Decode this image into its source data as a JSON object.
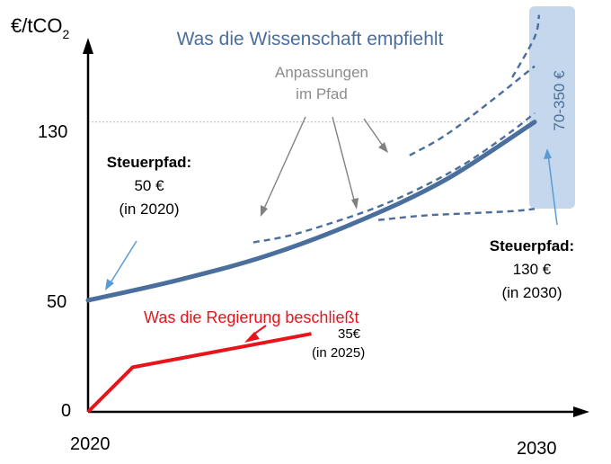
{
  "chart_data": {
    "type": "line",
    "ylabel_main": "€/tCO",
    "ylabel_sub": "2",
    "x_ticks": [
      "2020",
      "2030"
    ],
    "y_ticks": [
      "0",
      "50",
      "130"
    ],
    "xlim": [
      2020,
      2031
    ],
    "ylim": [
      0,
      175
    ],
    "reference_line": {
      "y": 130,
      "style": "dotted"
    },
    "series": [
      {
        "name": "Was die Wissenschaft empfiehlt",
        "color": "#4a6f9d",
        "x": [
          2020,
          2022,
          2024,
          2026,
          2028,
          2030
        ],
        "y": [
          50,
          59,
          70,
          85,
          104,
          130
        ]
      },
      {
        "name": "Was die Regierung beschließt",
        "color": "#e8141c",
        "x": [
          2020,
          2021,
          2025
        ],
        "y": [
          0,
          20,
          35
        ]
      }
    ],
    "adjustment_paths": {
      "color": "#4a6f9d",
      "style": "dashed",
      "paths": [
        {
          "x": [
            2023.7,
            2024.5,
            2025.5,
            2026.5,
            2027.5,
            2028.5,
            2029.5,
            2030
          ],
          "y": [
            76,
            79,
            85,
            92,
            101,
            112,
            126,
            134
          ]
        },
        {
          "x": [
            2027.2,
            2028,
            2029,
            2030
          ],
          "y": [
            115,
            124,
            139,
            155
          ]
        },
        {
          "x": [
            2029.5,
            2030,
            2030.1
          ],
          "y": [
            150,
            168,
            178
          ]
        },
        {
          "x": [
            2026.5,
            2027.5,
            2028.5,
            2029.5,
            2030
          ],
          "y": [
            86,
            88,
            89,
            90,
            91
          ]
        }
      ]
    },
    "range_band": {
      "label": "70-350 €",
      "color": "#c5d7ec"
    },
    "annotations": {
      "title_science": "Was die Wissenschaft empfiehlt",
      "adjust_line1": "Anpassungen",
      "adjust_line2": "im Pfad",
      "left_line1": "Steuerpfad:",
      "left_line2": "50 €",
      "left_line3": "(in 2020)",
      "right_line1": "Steuerpfad:",
      "right_line2": "130 €",
      "right_line3": "(in 2030)",
      "gov_label": "Was die Regierung beschließt",
      "gov_value_line1": "35€",
      "gov_value_line2": "(in 2025)"
    }
  }
}
